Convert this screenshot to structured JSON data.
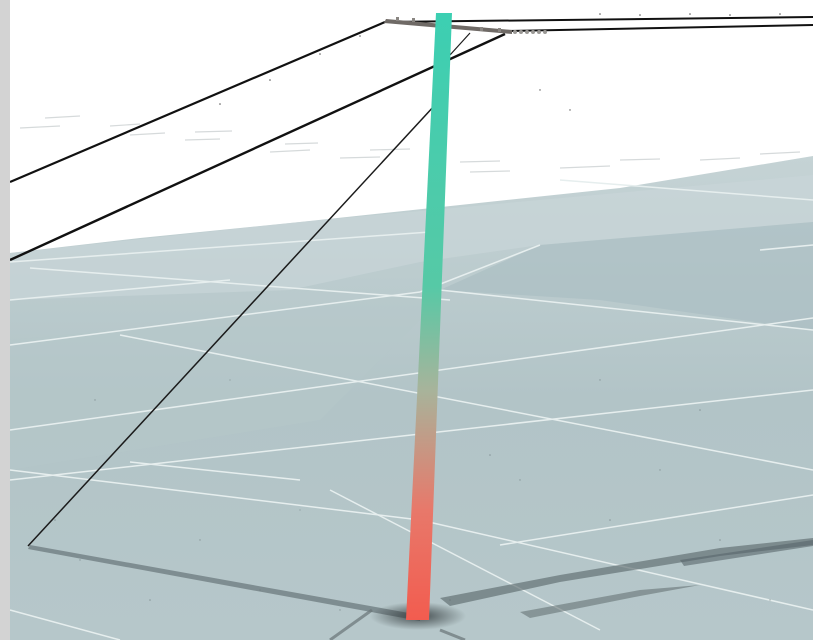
{
  "scene": {
    "colors": {
      "sky": "#ffffff",
      "ground": "#aec0c4",
      "ground_light": "#c7d5d8",
      "road_lines": "#e8efef",
      "pole_top": "#3ccfb2",
      "pole_mid": "#9ab79f",
      "pole_bottom": "#f25c4f",
      "crossarm": "#6f6a66",
      "wire": "#111111",
      "shadow": "#5e6b6e",
      "frame": "#d3d3d3"
    },
    "objects": [
      "utility-pole",
      "crossarm",
      "power-line",
      "guy-wire",
      "ground-plane",
      "pole-shadow"
    ]
  }
}
